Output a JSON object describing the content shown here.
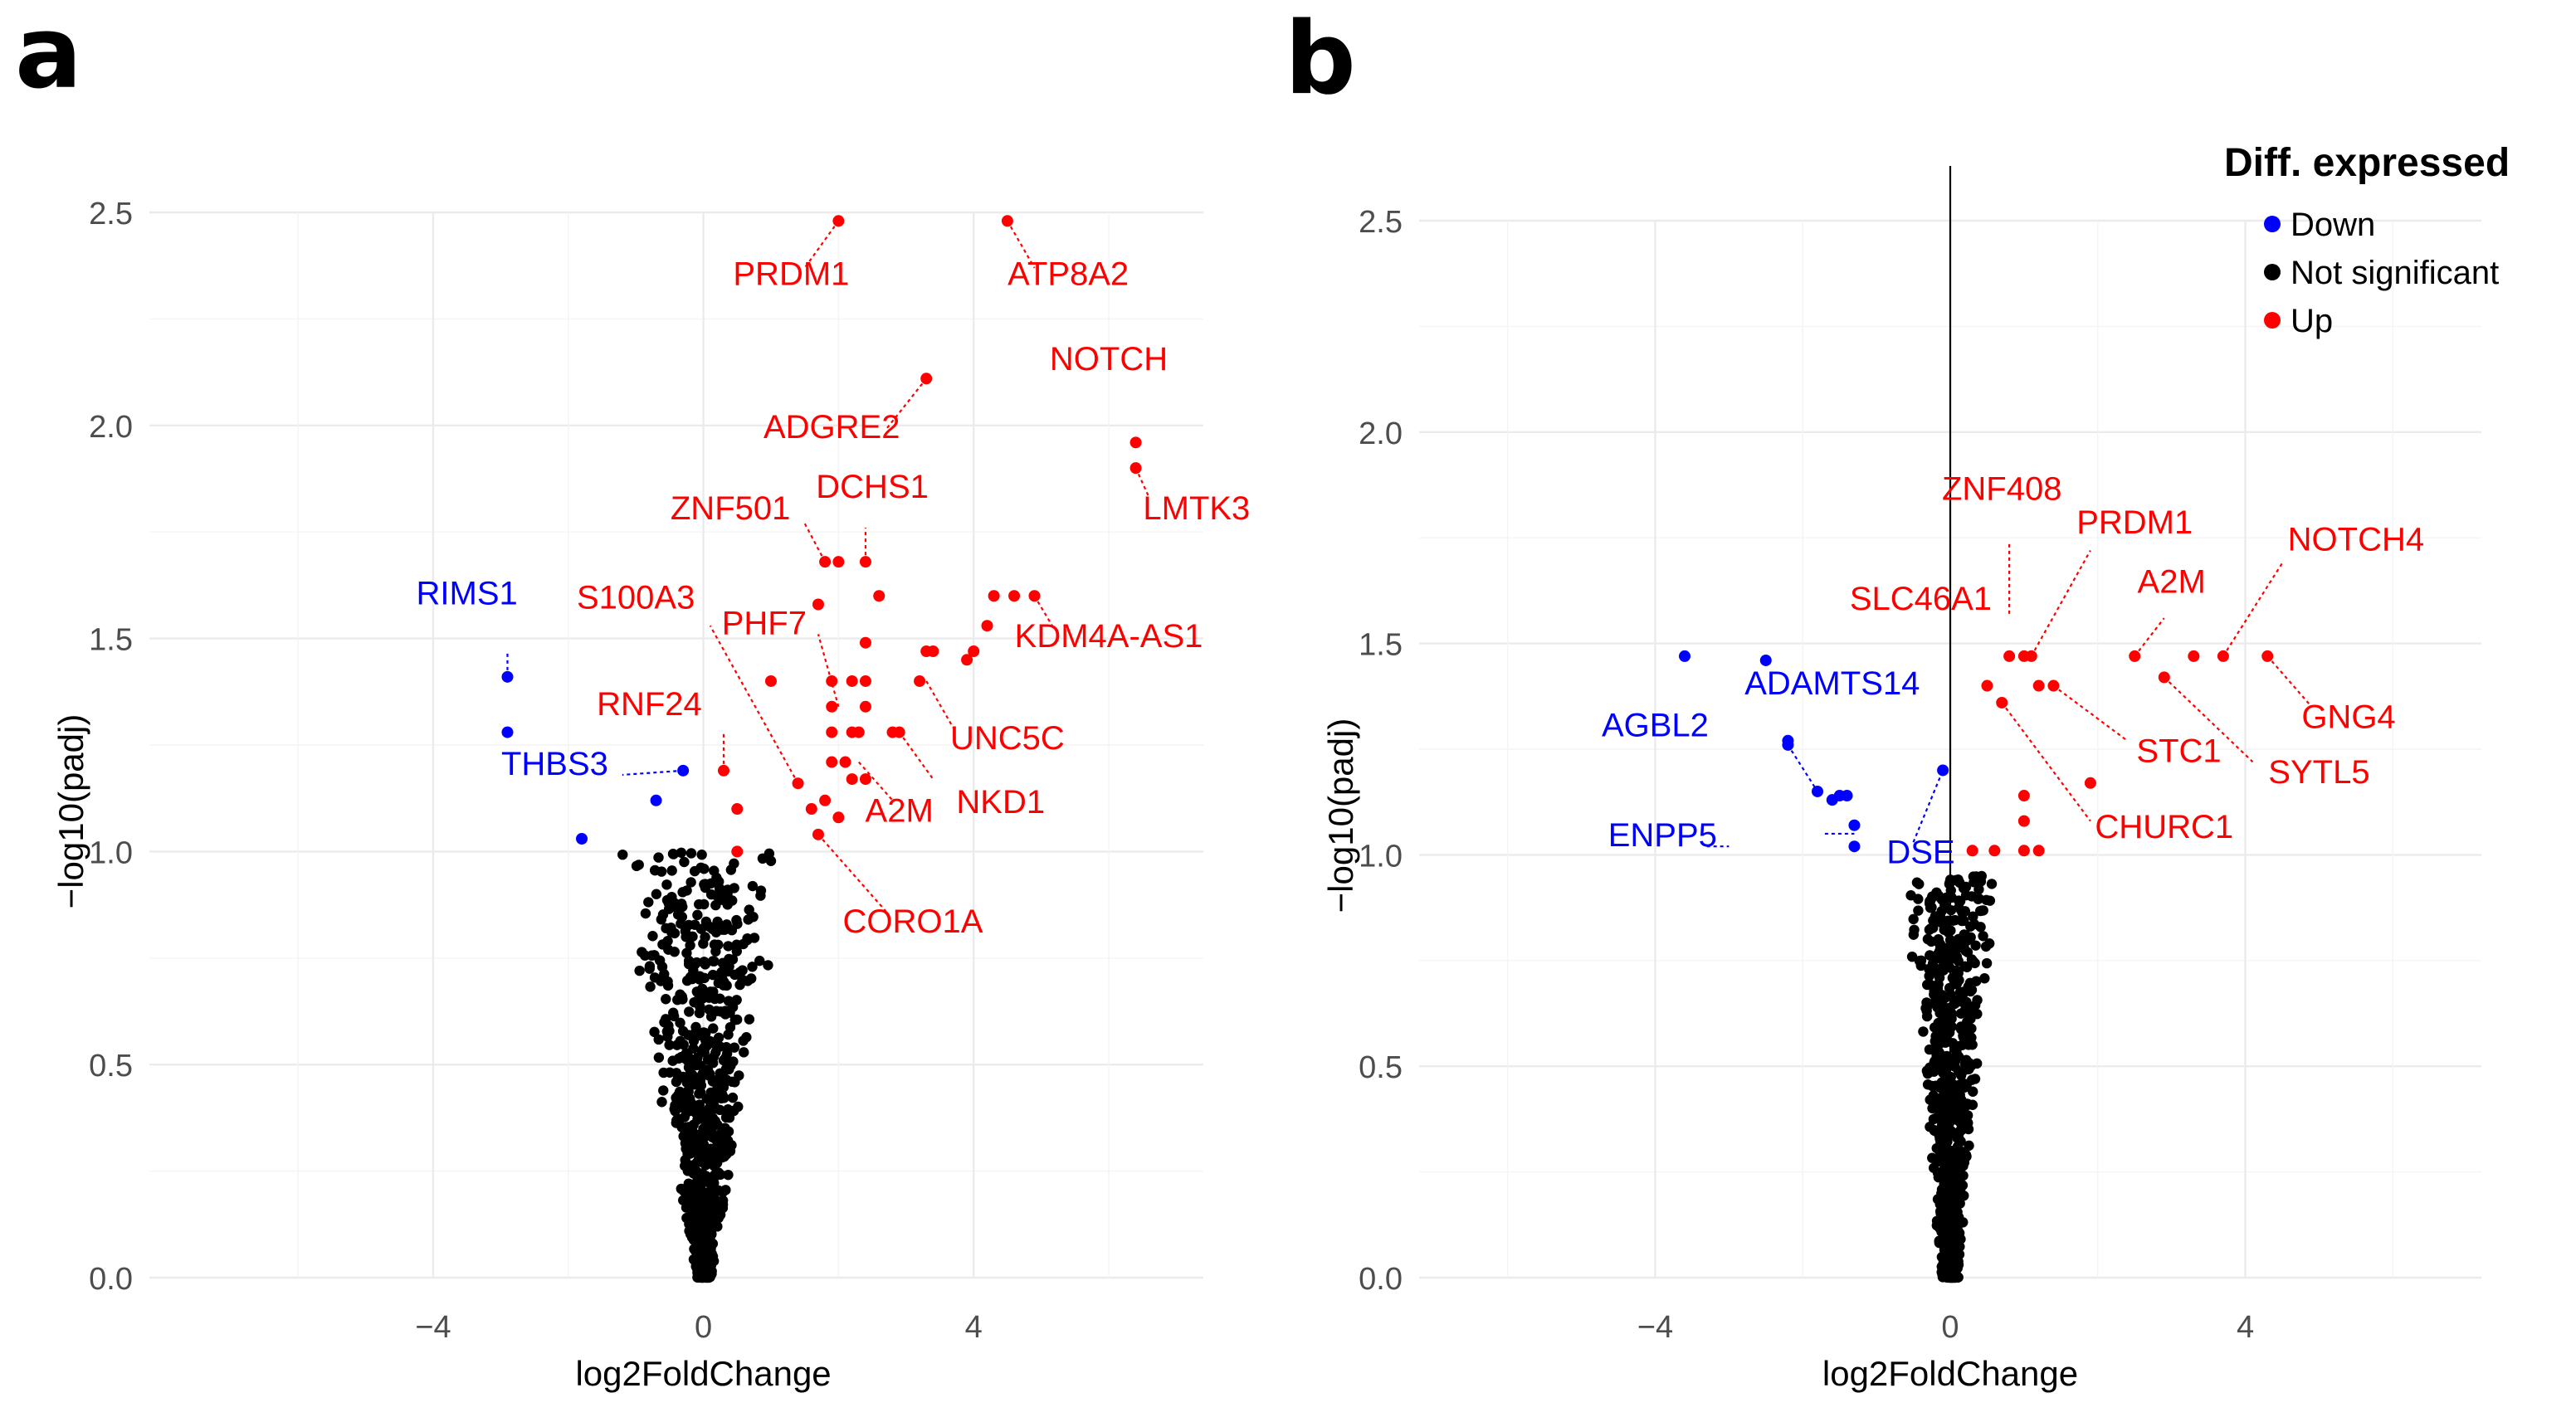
{
  "colors": {
    "Down": "#0000ff",
    "Not significant": "#000000",
    "Up": "#ff0000",
    "grid": "#ebebeb",
    "tick_text": "#4d4d4d"
  },
  "legend": {
    "title": "Diff. expressed",
    "items": [
      {
        "label": "Down",
        "color": "#0000ff"
      },
      {
        "label": "Not significant",
        "color": "#000000"
      },
      {
        "label": "Up",
        "color": "#ff0000"
      }
    ]
  },
  "chart_data": [
    {
      "panel": "a",
      "type": "scatter",
      "xlabel": "log2FoldChange",
      "ylabel": "−log10(padj)",
      "xlim": [
        -8.2,
        7.4
      ],
      "ylim": [
        0,
        2.5
      ],
      "x_ticks": [
        -4,
        0,
        4
      ],
      "y_ticks": [
        0.0,
        0.5,
        1.0,
        1.5,
        2.0,
        2.5
      ],
      "x_tick_labels": [
        "−4",
        "0",
        "4"
      ],
      "y_tick_labels": [
        "0.0",
        "0.5",
        "1.0",
        "1.5",
        "2.0",
        "2.5"
      ],
      "vline": null,
      "grid": true,
      "ns_max_y": 1.0,
      "series": [
        {
          "name": "Down",
          "points": [
            [
              -2.9,
              1.41
            ],
            [
              -2.9,
              1.28
            ],
            [
              -0.3,
              1.19
            ],
            [
              -0.7,
              1.12
            ],
            [
              -1.8,
              1.03
            ]
          ]
        },
        {
          "name": "Up",
          "points": [
            [
              2.0,
              2.48
            ],
            [
              4.5,
              2.48
            ],
            [
              3.3,
              2.11
            ],
            [
              6.4,
              1.96
            ],
            [
              6.4,
              1.9
            ],
            [
              1.8,
              1.68
            ],
            [
              2.0,
              1.68
            ],
            [
              2.4,
              1.68
            ],
            [
              2.6,
              1.6
            ],
            [
              1.7,
              1.58
            ],
            [
              2.4,
              1.49
            ],
            [
              1.0,
              1.4
            ],
            [
              1.9,
              1.4
            ],
            [
              2.2,
              1.4
            ],
            [
              2.4,
              1.4
            ],
            [
              1.9,
              1.34
            ],
            [
              2.4,
              1.34
            ],
            [
              1.9,
              1.28
            ],
            [
              2.2,
              1.28
            ],
            [
              2.3,
              1.28
            ],
            [
              2.8,
              1.28
            ],
            [
              2.9,
              1.28
            ],
            [
              1.9,
              1.21
            ],
            [
              2.1,
              1.21
            ],
            [
              2.2,
              1.17
            ],
            [
              2.4,
              1.17
            ],
            [
              1.4,
              1.16
            ],
            [
              1.8,
              1.12
            ],
            [
              1.6,
              1.1
            ],
            [
              2.0,
              1.08
            ],
            [
              0.3,
              1.19
            ],
            [
              0.5,
              1.1
            ],
            [
              0.5,
              1.0
            ],
            [
              1.7,
              1.04
            ],
            [
              3.3,
              1.47
            ],
            [
              3.4,
              1.47
            ],
            [
              3.2,
              1.4
            ],
            [
              3.9,
              1.45
            ],
            [
              4.0,
              1.47
            ],
            [
              4.2,
              1.53
            ],
            [
              4.3,
              1.6
            ],
            [
              4.6,
              1.6
            ],
            [
              4.9,
              1.6
            ]
          ]
        }
      ],
      "labels": [
        {
          "text": "RIMS1",
          "color": "#0000ff",
          "pos": [
            -3.5,
            1.58
          ]
        },
        {
          "text": "THBS3",
          "color": "#0000ff",
          "pos": [
            -2.2,
            1.18
          ]
        },
        {
          "text": "PRDM1",
          "color": "#ff0000",
          "pos": [
            1.3,
            2.33
          ]
        },
        {
          "text": "ATP8A2",
          "color": "#ff0000",
          "pos": [
            5.4,
            2.33
          ]
        },
        {
          "text": "NOTCH",
          "color": "#ff0000",
          "pos": [
            6.0,
            2.13
          ]
        },
        {
          "text": "ADGRE2",
          "color": "#ff0000",
          "pos": [
            1.9,
            1.97
          ]
        },
        {
          "text": "LMTK3",
          "color": "#ff0000",
          "pos": [
            7.3,
            1.78
          ]
        },
        {
          "text": "DCHS1",
          "color": "#ff0000",
          "pos": [
            2.5,
            1.83
          ]
        },
        {
          "text": "ZNF501",
          "color": "#ff0000",
          "pos": [
            0.4,
            1.78
          ]
        },
        {
          "text": "S100A3",
          "color": "#ff0000",
          "pos": [
            -1.0,
            1.57
          ]
        },
        {
          "text": "PHF7",
          "color": "#ff0000",
          "pos": [
            0.9,
            1.51
          ]
        },
        {
          "text": "KDM4A-AS1",
          "color": "#ff0000",
          "pos": [
            6.0,
            1.48
          ]
        },
        {
          "text": "RNF24",
          "color": "#ff0000",
          "pos": [
            -0.8,
            1.32
          ]
        },
        {
          "text": "UNC5C",
          "color": "#ff0000",
          "pos": [
            4.5,
            1.24
          ]
        },
        {
          "text": "NKD1",
          "color": "#ff0000",
          "pos": [
            4.4,
            1.09
          ]
        },
        {
          "text": "A2M",
          "color": "#ff0000",
          "pos": [
            2.9,
            1.07
          ]
        },
        {
          "text": "CORO1A",
          "color": "#ff0000",
          "pos": [
            3.1,
            0.81
          ]
        }
      ],
      "connectors": [
        {
          "from": [
            2.0,
            2.48
          ],
          "to": [
            1.5,
            2.37
          ],
          "color": "#ff0000"
        },
        {
          "from": [
            4.5,
            2.48
          ],
          "to": [
            4.9,
            2.37
          ],
          "color": "#ff0000"
        },
        {
          "from": [
            3.3,
            2.11
          ],
          "to": [
            2.7,
            1.99
          ],
          "color": "#ff0000"
        },
        {
          "from": [
            6.4,
            1.9
          ],
          "to": [
            6.6,
            1.83
          ],
          "color": "#ff0000"
        },
        {
          "from": [
            2.4,
            1.68
          ],
          "to": [
            2.4,
            1.76
          ],
          "color": "#ff0000"
        },
        {
          "from": [
            1.8,
            1.68
          ],
          "to": [
            1.5,
            1.77
          ],
          "color": "#ff0000"
        },
        {
          "from": [
            1.4,
            1.16
          ],
          "to": [
            0.1,
            1.53
          ],
          "color": "#ff0000"
        },
        {
          "from": [
            2.0,
            1.34
          ],
          "to": [
            1.7,
            1.51
          ],
          "color": "#ff0000"
        },
        {
          "from": [
            4.9,
            1.6
          ],
          "to": [
            5.2,
            1.52
          ],
          "color": "#ff0000"
        },
        {
          "from": [
            3.3,
            1.4
          ],
          "to": [
            3.7,
            1.29
          ],
          "color": "#ff0000"
        },
        {
          "from": [
            2.9,
            1.28
          ],
          "to": [
            3.4,
            1.17
          ],
          "color": "#ff0000"
        },
        {
          "from": [
            2.3,
            1.21
          ],
          "to": [
            2.8,
            1.12
          ],
          "color": "#ff0000"
        },
        {
          "from": [
            1.7,
            1.04
          ],
          "to": [
            2.7,
            0.86
          ],
          "color": "#ff0000"
        },
        {
          "from": [
            0.3,
            1.19
          ],
          "to": [
            0.3,
            1.28
          ],
          "color": "#ff0000"
        },
        {
          "from": [
            -2.9,
            1.41
          ],
          "to": [
            -2.9,
            1.47
          ],
          "color": "#0000ff"
        },
        {
          "from": [
            -0.3,
            1.19
          ],
          "to": [
            -1.2,
            1.18
          ],
          "color": "#0000ff"
        }
      ]
    },
    {
      "panel": "b",
      "type": "scatter",
      "xlabel": "log2FoldChange",
      "ylabel": "−log10(padj)",
      "xlim": [
        -7.2,
        7.2
      ],
      "ylim": [
        0,
        2.5
      ],
      "x_ticks": [
        -4,
        0,
        4
      ],
      "y_ticks": [
        0.0,
        0.5,
        1.0,
        1.5,
        2.0,
        2.5
      ],
      "x_tick_labels": [
        "−4",
        "0",
        "4"
      ],
      "y_tick_labels": [
        "0.0",
        "0.5",
        "1.0",
        "1.5",
        "2.0",
        "2.5"
      ],
      "vline": 0,
      "grid": true,
      "ns_max_y": 0.95,
      "series": [
        {
          "name": "Down",
          "points": [
            [
              -3.6,
              1.47
            ],
            [
              -2.5,
              1.46
            ],
            [
              -2.2,
              1.27
            ],
            [
              -2.2,
              1.26
            ],
            [
              -1.8,
              1.15
            ],
            [
              -1.6,
              1.13
            ],
            [
              -1.5,
              1.14
            ],
            [
              -1.4,
              1.14
            ],
            [
              -1.3,
              1.07
            ],
            [
              -1.3,
              1.02
            ],
            [
              -0.1,
              1.2
            ]
          ]
        },
        {
          "name": "Up",
          "points": [
            [
              0.8,
              1.47
            ],
            [
              1.0,
              1.47
            ],
            [
              1.1,
              1.47
            ],
            [
              2.5,
              1.47
            ],
            [
              3.3,
              1.47
            ],
            [
              3.7,
              1.47
            ],
            [
              4.3,
              1.47
            ],
            [
              2.9,
              1.42
            ],
            [
              0.5,
              1.4
            ],
            [
              1.2,
              1.4
            ],
            [
              1.4,
              1.4
            ],
            [
              0.7,
              1.36
            ],
            [
              1.9,
              1.17
            ],
            [
              1.0,
              1.14
            ],
            [
              1.0,
              1.08
            ],
            [
              0.6,
              1.01
            ],
            [
              1.0,
              1.01
            ],
            [
              1.2,
              1.01
            ],
            [
              0.3,
              1.01
            ]
          ]
        }
      ],
      "labels": [
        {
          "text": "ADAMTS14",
          "color": "#0000ff",
          "pos": [
            -1.6,
            1.38
          ]
        },
        {
          "text": "AGBL2",
          "color": "#0000ff",
          "pos": [
            -4.0,
            1.28
          ]
        },
        {
          "text": "ENPP5",
          "color": "#0000ff",
          "pos": [
            -3.9,
            1.02
          ]
        },
        {
          "text": "DSE",
          "color": "#0000ff",
          "pos": [
            -0.4,
            0.98
          ]
        },
        {
          "text": "ZNF408",
          "color": "#ff0000",
          "pos": [
            0.7,
            1.84
          ]
        },
        {
          "text": "PRDM1",
          "color": "#ff0000",
          "pos": [
            2.5,
            1.76
          ]
        },
        {
          "text": "NOTCH4",
          "color": "#ff0000",
          "pos": [
            5.5,
            1.72
          ]
        },
        {
          "text": "SLC46A1",
          "color": "#ff0000",
          "pos": [
            -0.4,
            1.58
          ]
        },
        {
          "text": "A2M",
          "color": "#ff0000",
          "pos": [
            3.0,
            1.62
          ]
        },
        {
          "text": "GNG4",
          "color": "#ff0000",
          "pos": [
            5.4,
            1.3
          ]
        },
        {
          "text": "STC1",
          "color": "#ff0000",
          "pos": [
            3.1,
            1.22
          ]
        },
        {
          "text": "SYTL5",
          "color": "#ff0000",
          "pos": [
            5.0,
            1.17
          ]
        },
        {
          "text": "CHURC1",
          "color": "#ff0000",
          "pos": [
            2.9,
            1.04
          ]
        }
      ],
      "connectors": [
        {
          "from": [
            -2.2,
            1.26
          ],
          "to": [
            -1.8,
            1.15
          ],
          "color": "#0000ff"
        },
        {
          "from": [
            -3.3,
            1.02
          ],
          "to": [
            -3.0,
            1.02
          ],
          "color": "#0000ff"
        },
        {
          "from": [
            -1.7,
            1.05
          ],
          "to": [
            -1.3,
            1.05
          ],
          "color": "#0000ff"
        },
        {
          "from": [
            -0.5,
            1.03
          ],
          "to": [
            -0.1,
            1.2
          ],
          "color": "#0000ff"
        },
        {
          "from": [
            0.8,
            1.57
          ],
          "to": [
            0.8,
            1.74
          ],
          "color": "#ff0000"
        },
        {
          "from": [
            1.1,
            1.47
          ],
          "to": [
            1.9,
            1.72
          ],
          "color": "#ff0000"
        },
        {
          "from": [
            3.7,
            1.47
          ],
          "to": [
            4.5,
            1.69
          ],
          "color": "#ff0000"
        },
        {
          "from": [
            2.5,
            1.47
          ],
          "to": [
            2.9,
            1.56
          ],
          "color": "#ff0000"
        },
        {
          "from": [
            4.3,
            1.47
          ],
          "to": [
            4.9,
            1.35
          ],
          "color": "#ff0000"
        },
        {
          "from": [
            1.4,
            1.4
          ],
          "to": [
            2.4,
            1.27
          ],
          "color": "#ff0000"
        },
        {
          "from": [
            2.9,
            1.42
          ],
          "to": [
            4.1,
            1.22
          ],
          "color": "#ff0000"
        },
        {
          "from": [
            0.7,
            1.36
          ],
          "to": [
            1.9,
            1.08
          ],
          "color": "#ff0000"
        }
      ]
    }
  ]
}
